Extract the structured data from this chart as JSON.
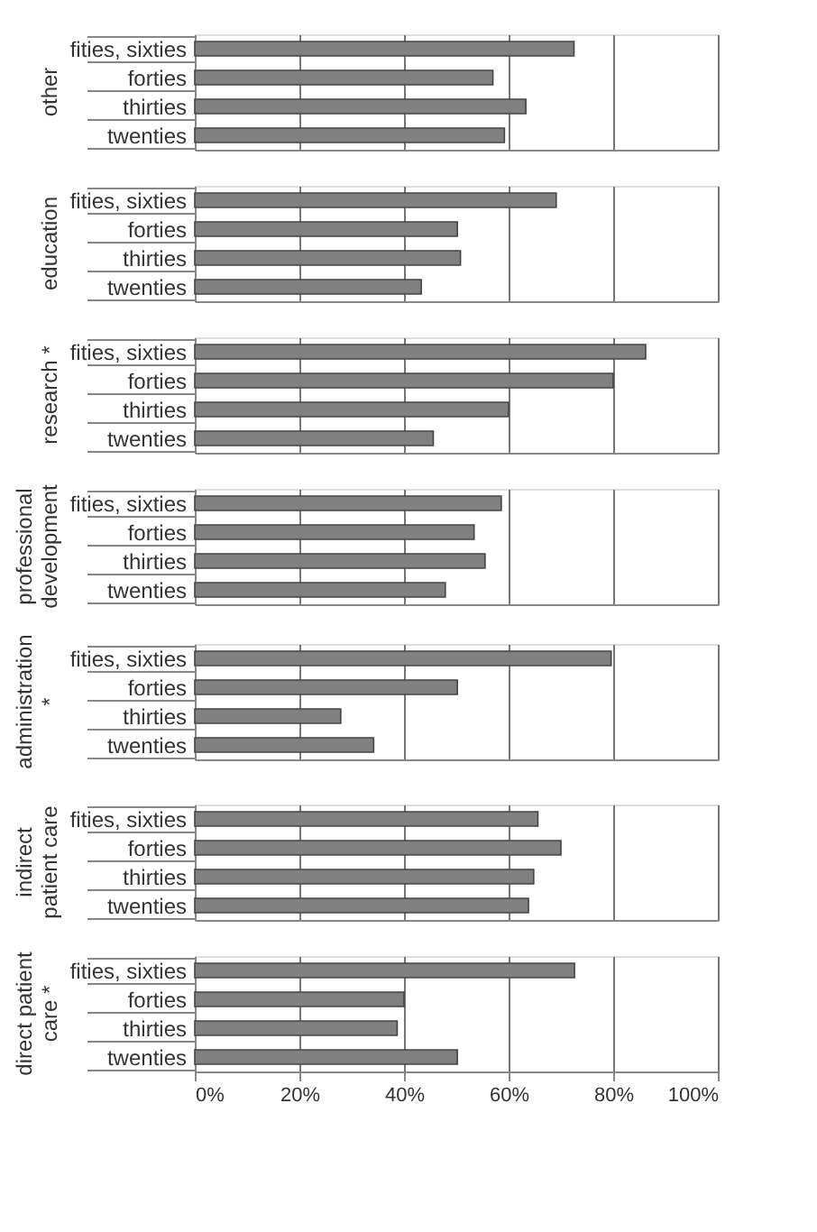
{
  "chart_data": [
    {
      "type": "bar",
      "orientation": "horizontal",
      "title": "other",
      "categories": [
        "fities, sixties",
        "forties",
        "thirties",
        "twenties"
      ],
      "values": [
        72.5,
        57,
        63.3,
        59.2
      ],
      "color": "#808080",
      "xlim": [
        0,
        100
      ],
      "xticks": [
        {
          "value": 0,
          "label": null
        },
        {
          "value": 20,
          "label": null
        },
        {
          "value": 40,
          "label": null
        },
        {
          "value": 60,
          "label": null
        },
        {
          "value": 80,
          "label": null
        },
        {
          "value": 100,
          "label": null
        }
      ],
      "grid": "x",
      "tick_labels": "y"
    },
    {
      "type": "bar",
      "orientation": "horizontal",
      "title": "education",
      "categories": [
        "fities, sixties",
        "forties",
        "thirties",
        "twenties"
      ],
      "values": [
        69.1,
        50.2,
        50.8,
        43.3
      ],
      "color": "#808080",
      "xlim": [
        0,
        100
      ],
      "xticks": [
        {
          "value": 0,
          "label": null
        },
        {
          "value": 20,
          "label": null
        },
        {
          "value": 40,
          "label": null
        },
        {
          "value": 60,
          "label": null
        },
        {
          "value": 80,
          "label": null
        },
        {
          "value": 100,
          "label": null
        }
      ],
      "grid": "x",
      "tick_labels": "y"
    },
    {
      "type": "bar",
      "orientation": "horizontal",
      "title": "research *",
      "categories": [
        "fities, sixties",
        "forties",
        "thirties",
        "twenties"
      ],
      "values": [
        86.2,
        80,
        60,
        45.6
      ],
      "color": "#808080",
      "xlim": [
        0,
        100
      ],
      "xticks": [
        {
          "value": 0,
          "label": null
        },
        {
          "value": 20,
          "label": null
        },
        {
          "value": 40,
          "label": null
        },
        {
          "value": 60,
          "label": null
        },
        {
          "value": 80,
          "label": null
        },
        {
          "value": 100,
          "label": null
        }
      ],
      "grid": "x",
      "tick_labels": "y"
    },
    {
      "type": "bar",
      "orientation": "horizontal",
      "title": "professional development",
      "categories": [
        "fities, sixties",
        "forties",
        "thirties",
        "twenties"
      ],
      "values": [
        58.6,
        53.4,
        55.5,
        47.9
      ],
      "color": "#808080",
      "xlim": [
        0,
        100
      ],
      "xticks": [
        {
          "value": 0,
          "label": null
        },
        {
          "value": 20,
          "label": null
        },
        {
          "value": 40,
          "label": null
        },
        {
          "value": 60,
          "label": null
        },
        {
          "value": 80,
          "label": null
        },
        {
          "value": 100,
          "label": null
        }
      ],
      "grid": "x",
      "tick_labels": "y"
    },
    {
      "type": "bar",
      "orientation": "horizontal",
      "title": "administration *",
      "categories": [
        "fities, sixties",
        "forties",
        "thirties",
        "twenties"
      ],
      "values": [
        79.6,
        50.2,
        27.9,
        34.2
      ],
      "color": "#808080",
      "xlim": [
        0,
        100
      ],
      "xticks": [
        {
          "value": 0,
          "label": null
        },
        {
          "value": 20,
          "label": null
        },
        {
          "value": 40,
          "label": null
        },
        {
          "value": 60,
          "label": null
        },
        {
          "value": 80,
          "label": null
        },
        {
          "value": 100,
          "label": null
        }
      ],
      "grid": "x",
      "tick_labels": "y"
    },
    {
      "type": "bar",
      "orientation": "horizontal",
      "title": "indirect patient care",
      "categories": [
        "fities, sixties",
        "forties",
        "thirties",
        "twenties"
      ],
      "values": [
        65.6,
        70,
        64.8,
        63.8
      ],
      "color": "#808080",
      "xlim": [
        0,
        100
      ],
      "xticks": [
        {
          "value": 0,
          "label": null
        },
        {
          "value": 20,
          "label": null
        },
        {
          "value": 40,
          "label": null
        },
        {
          "value": 60,
          "label": null
        },
        {
          "value": 80,
          "label": null
        },
        {
          "value": 100,
          "label": null
        }
      ],
      "grid": "x",
      "tick_labels": "y"
    },
    {
      "type": "bar",
      "orientation": "horizontal",
      "title": "direct patient care *",
      "categories": [
        "fities, sixties",
        "forties",
        "thirties",
        "twenties"
      ],
      "values": [
        72.6,
        40,
        38.7,
        50.2
      ],
      "color": "#808080",
      "xlim": [
        0,
        100
      ],
      "xticks": [
        {
          "value": 0,
          "label": "0%"
        },
        {
          "value": 20,
          "label": "20%"
        },
        {
          "value": 40,
          "label": "40%"
        },
        {
          "value": 60,
          "label": "60%"
        },
        {
          "value": 80,
          "label": "80%"
        },
        {
          "value": 100,
          "label": "100%"
        }
      ],
      "grid": "x"
    }
  ]
}
